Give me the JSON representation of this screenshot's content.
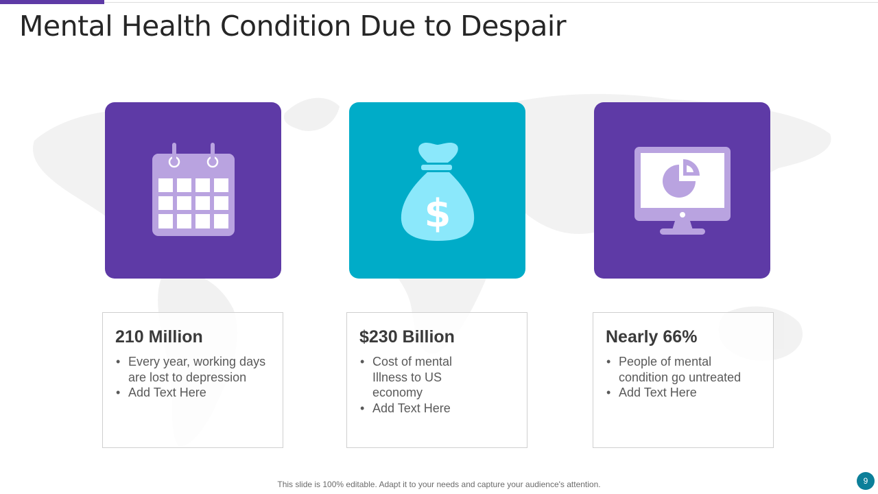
{
  "slide": {
    "title": "Mental Health Condition Due to Despair",
    "footer": "This slide is 100% editable. Adapt it to your needs and capture your audience's attention.",
    "page_number": "9"
  },
  "colors": {
    "purple": "#5e3aa6",
    "cyan": "#00acc8",
    "light_purple": "#b9a3e0",
    "light_cyan": "#8be8fb",
    "page_badge": "#0c7f99"
  },
  "tiles": [
    {
      "icon": "calendar-icon",
      "color": "#5e3aa6"
    },
    {
      "icon": "money-bag-icon",
      "color": "#00acc8"
    },
    {
      "icon": "monitor-pie-chart-icon",
      "color": "#5e3aa6"
    }
  ],
  "cards": [
    {
      "title": "210 Million",
      "bullets": [
        "Every year, working days are lost to depression",
        "Add Text Here"
      ]
    },
    {
      "title": "$230 Billion",
      "bullets": [
        "Cost of mental Illness to US economy",
        "Add Text Here"
      ]
    },
    {
      "title": "Nearly 66%",
      "bullets": [
        "People of mental condition go untreated",
        "Add Text Here"
      ]
    }
  ]
}
